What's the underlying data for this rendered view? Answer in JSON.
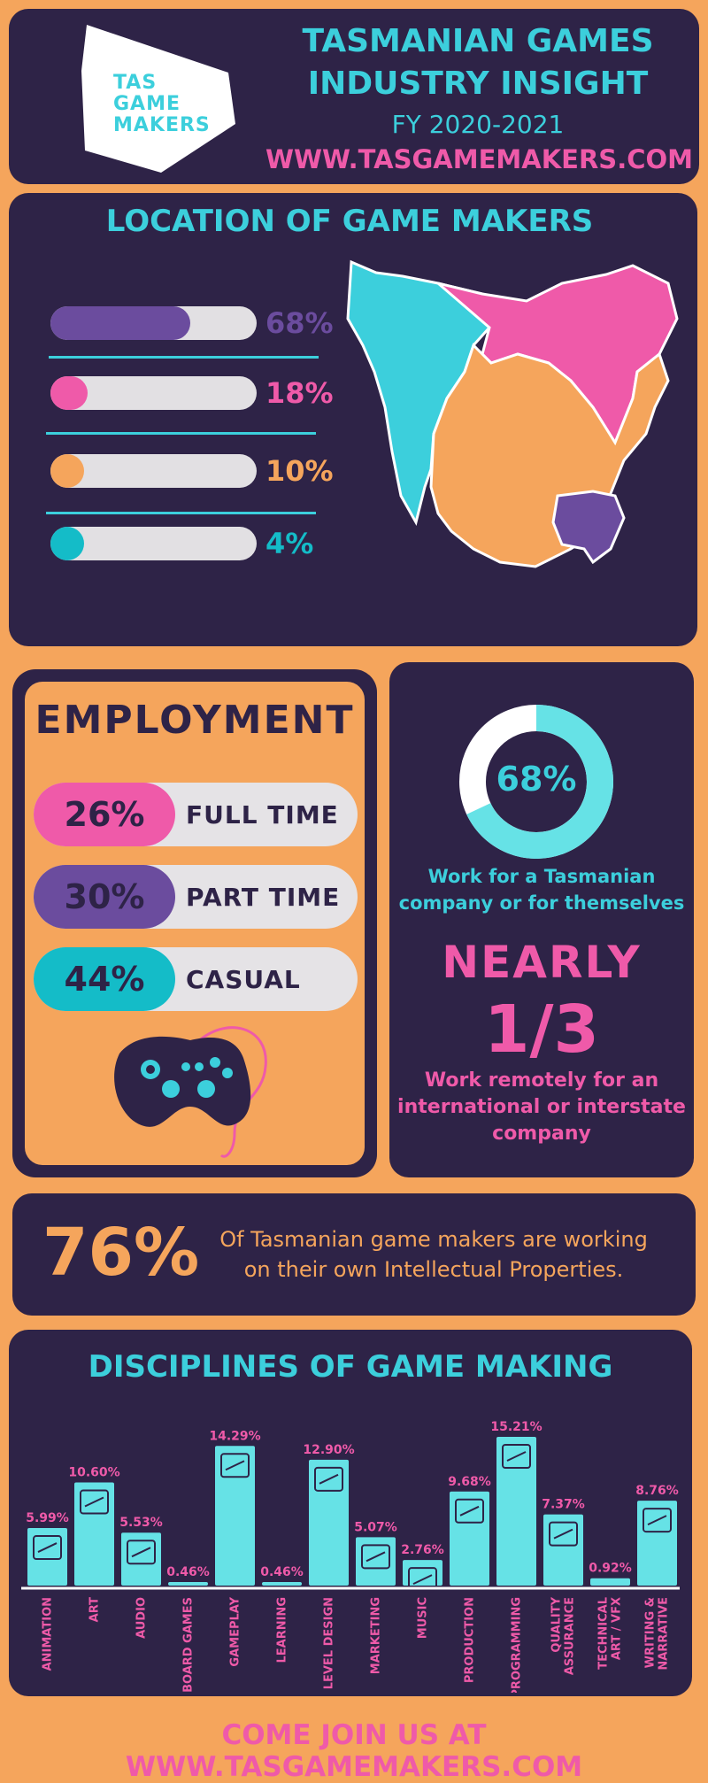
{
  "colors": {
    "navy": "#2e2347",
    "orange": "#f5a55c",
    "pink": "#ef5aa9",
    "purple": "#6b4c9e",
    "cyan": "#3ccfdc",
    "bar": "#66e2e6",
    "gray": "#e2e0e3"
  },
  "header": {
    "logo_lines": [
      "TAS",
      "GAME",
      "MAKERS"
    ],
    "title_line1": "TASMANIAN GAMES",
    "title_line2": "INDUSTRY INSIGHT",
    "subtitle": "FY 2020-2021",
    "url": "WWW.TASGAMEMAKERS.COM"
  },
  "location": {
    "title": "LOCATION OF GAME MAKERS",
    "bars": [
      {
        "pct_label": "68%",
        "value": 68,
        "color": "#6b4c9e"
      },
      {
        "pct_label": "18%",
        "value": 18,
        "color": "#ef5aa9"
      },
      {
        "pct_label": "10%",
        "value": 10,
        "color": "#f5a55c"
      },
      {
        "pct_label": "4%",
        "value": 4,
        "color": "#14bcc8"
      }
    ]
  },
  "employment": {
    "title": "EMPLOYMENT",
    "rows": [
      {
        "pct": "26%",
        "label": "FULL TIME",
        "color": "#ef5aa9"
      },
      {
        "pct": "30%",
        "label": "PART TIME",
        "color": "#6b4c9e"
      },
      {
        "pct": "44%",
        "label": "CASUAL",
        "color": "#14bcc8"
      }
    ],
    "icon": "gamepad-icon"
  },
  "stats": {
    "donut_value": 68,
    "donut_label": "68%",
    "donut_caption_1": "Work for a Tasmanian",
    "donut_caption_2": "company or for themselves",
    "nearly": "NEARLY",
    "fraction": "1/3",
    "remote_1": "Work remotely for an",
    "remote_2": "international or interstate",
    "remote_3": "company"
  },
  "ip": {
    "pct": "76%",
    "text_1": "Of Tasmanian game makers are working",
    "text_2": "on their own Intellectual Properties."
  },
  "chart_data": {
    "type": "bar",
    "title": "DISCIPLINES OF GAME MAKING",
    "categories": [
      "ANIMATION",
      "ART",
      "AUDIO",
      "BOARD GAMES",
      "GAMEPLAY",
      "LEARNING",
      "LEVEL DESIGN",
      "MARKETING",
      "MUSIC",
      "PRODUCTION",
      "PROGRAMMING",
      "QUALITY ASSURANCE",
      "TECHNICAL ART / VFX",
      "WRITING & NARRATIVE"
    ],
    "category_lines": [
      [
        "ANIMATION"
      ],
      [
        "ART"
      ],
      [
        "AUDIO"
      ],
      [
        "BOARD GAMES"
      ],
      [
        "GAMEPLAY"
      ],
      [
        "LEARNING"
      ],
      [
        "LEVEL DESIGN"
      ],
      [
        "MARKETING"
      ],
      [
        "MUSIC"
      ],
      [
        "PRODUCTION"
      ],
      [
        "PROGRAMMING"
      ],
      [
        "QUALITY",
        "ASSURANCE"
      ],
      [
        "TECHNICAL",
        "ART / VFX"
      ],
      [
        "WRITING &",
        "NARRATIVE"
      ]
    ],
    "values": [
      5.99,
      10.6,
      5.53,
      0.46,
      14.29,
      0.46,
      12.9,
      5.07,
      2.76,
      9.68,
      15.21,
      7.37,
      0.92,
      8.76
    ],
    "value_labels": [
      "5.99%",
      "10.60%",
      "5.53%",
      "0.46%",
      "14.29%",
      "0.46%",
      "12.90%",
      "5.07%",
      "2.76%",
      "9.68%",
      "15.21%",
      "7.37%",
      "0.92%",
      "8.76%"
    ],
    "ylim": [
      0,
      15.21
    ],
    "bar_color": "#66e2e6",
    "label_color": "#ef5aa9",
    "icons": [
      "animation-icon",
      "art-palette-icon",
      "audio-speaker-icon",
      "",
      "gameplay-dice-icon",
      "",
      "level-design-icon",
      "marketing-icon",
      "music-note-icon",
      "production-gear-icon",
      "programming-code-icon",
      "quality-badge-icon",
      "",
      "writing-icon"
    ]
  },
  "footer": {
    "text": "COME JOIN US AT WWW.TASGAMEMAKERS.COM"
  }
}
